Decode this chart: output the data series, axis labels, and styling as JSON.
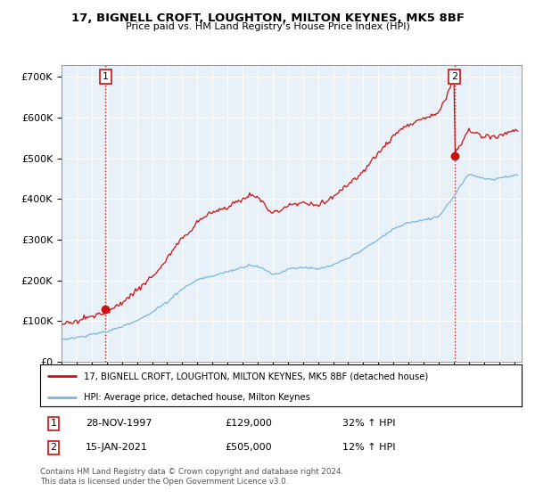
{
  "title1": "17, BIGNELL CROFT, LOUGHTON, MILTON KEYNES, MK5 8BF",
  "title2": "Price paid vs. HM Land Registry's House Price Index (HPI)",
  "xlim_start": 1995.0,
  "xlim_end": 2025.5,
  "ylim": [
    0,
    730000
  ],
  "yticks": [
    0,
    100000,
    200000,
    300000,
    400000,
    500000,
    600000,
    700000
  ],
  "ytick_labels": [
    "£0",
    "£100K",
    "£200K",
    "£300K",
    "£400K",
    "£500K",
    "£600K",
    "£700K"
  ],
  "sale1_x": 1997.91,
  "sale1_y": 129000,
  "sale1_label": "1",
  "sale2_x": 2021.04,
  "sale2_y": 505000,
  "sale2_label": "2",
  "hpi_color": "#7ab8d9",
  "price_color": "#cc1111",
  "legend_price_label": "17, BIGNELL CROFT, LOUGHTON, MILTON KEYNES, MK5 8BF (detached house)",
  "legend_hpi_label": "HPI: Average price, detached house, Milton Keynes",
  "annotation1_date": "28-NOV-1997",
  "annotation1_price": "£129,000",
  "annotation1_hpi": "32% ↑ HPI",
  "annotation2_date": "15-JAN-2021",
  "annotation2_price": "£505,000",
  "annotation2_hpi": "12% ↑ HPI",
  "footer": "Contains HM Land Registry data © Crown copyright and database right 2024.\nThis data is licensed under the Open Government Licence v3.0.",
  "background_color": "#ffffff",
  "chart_bg": "#e8f0f8",
  "grid_color": "#ffffff"
}
